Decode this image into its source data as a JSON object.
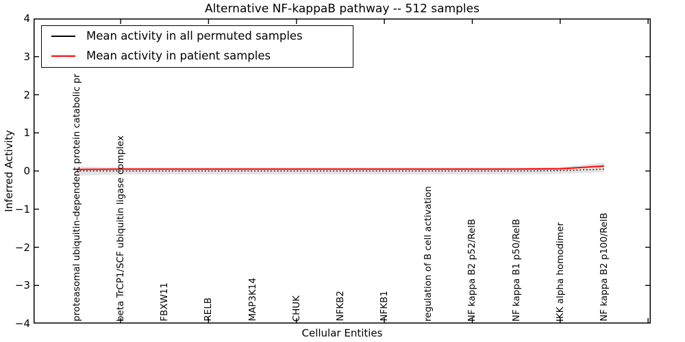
{
  "figure": {
    "background": "#ffffff",
    "frame_color": "#000000"
  },
  "chart_data": {
    "type": "line",
    "title": "Alternative NF-kappaB pathway -- 512 samples",
    "xlabel": "Cellular Entities",
    "ylabel": "Inferred Activity",
    "ylim": [
      -4,
      4
    ],
    "yticks": [
      4,
      3,
      2,
      1,
      0,
      -1,
      -2,
      -3,
      -4
    ],
    "xlim": [
      -0.98,
      13.06
    ],
    "xticks": [
      1,
      3,
      5,
      7,
      9,
      11,
      13
    ],
    "grid": false,
    "legend_position": "upper left",
    "categories": [
      "proteasomal ubiquitin-dependent protein catabolic pr",
      "beta TrCP1/SCF ubiquitin ligase complex",
      "FBXW11",
      "RELB",
      "MAP3K14",
      "CHUK",
      "NFKB2",
      "NFKB1",
      "regulation of B cell activation",
      "NF kappa B2 p52/RelB",
      "NF kappa B1 p50/RelB",
      "IKK alpha homodimer",
      "NF kappa B2 p100/RelB"
    ],
    "series": [
      {
        "name": "Mean activity in all permuted samples",
        "color": "#000000",
        "style": "dotted",
        "values": [
          0.0,
          0.0,
          0.0,
          0.0,
          0.0,
          0.0,
          0.0,
          0.0,
          0.0,
          0.0,
          0.0,
          0.01,
          0.05
        ]
      },
      {
        "name": "Mean activity in patient samples",
        "color": "#ff0000",
        "style": "solid",
        "values": [
          0.04,
          0.05,
          0.05,
          0.05,
          0.05,
          0.05,
          0.05,
          0.05,
          0.05,
          0.05,
          0.05,
          0.06,
          0.13
        ]
      }
    ],
    "band": {
      "name": "permutation-spread-band",
      "color": "#e3e3e3",
      "upper": [
        0.12,
        0.09,
        0.09,
        0.09,
        0.09,
        0.09,
        0.09,
        0.09,
        0.09,
        0.09,
        0.09,
        0.1,
        0.22
      ],
      "lower": [
        -0.12,
        -0.09,
        -0.09,
        -0.09,
        -0.09,
        -0.09,
        -0.09,
        -0.09,
        -0.09,
        -0.09,
        -0.09,
        -0.07,
        -0.03
      ]
    }
  }
}
